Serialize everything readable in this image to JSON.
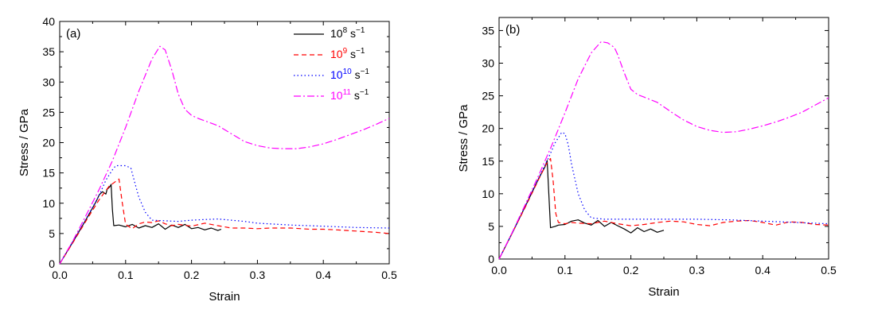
{
  "chart_data": [
    {
      "type": "line",
      "panel_label": "(a)",
      "xlabel": "Strain",
      "ylabel": "Stress / GPa",
      "xlim": [
        0,
        0.5
      ],
      "ylim": [
        0,
        40
      ],
      "xticks": [
        "0.0",
        "0.1",
        "0.2",
        "0.3",
        "0.4",
        "0.5"
      ],
      "yticks": [
        "0",
        "5",
        "10",
        "15",
        "20",
        "25",
        "30",
        "35",
        "40"
      ],
      "grid": false,
      "legend_placement": "top-right",
      "series": [
        {
          "name": "10^8 s^-1",
          "base": "10",
          "exp": "8",
          "unit": "s",
          "unit_exp": "−1",
          "color": "#000000",
          "dash": "solid",
          "points": [
            [
              0,
              0
            ],
            [
              0.02,
              3.6
            ],
            [
              0.04,
              7.3
            ],
            [
              0.055,
              10.2
            ],
            [
              0.06,
              11.4
            ],
            [
              0.065,
              11.9
            ],
            [
              0.07,
              11.5
            ],
            [
              0.072,
              12.3
            ],
            [
              0.076,
              12.7
            ],
            [
              0.078,
              13.1
            ],
            [
              0.08,
              9.0
            ],
            [
              0.082,
              6.3
            ],
            [
              0.09,
              6.4
            ],
            [
              0.1,
              6.1
            ],
            [
              0.11,
              6.5
            ],
            [
              0.12,
              5.9
            ],
            [
              0.13,
              6.3
            ],
            [
              0.14,
              6.0
            ],
            [
              0.15,
              6.6
            ],
            [
              0.16,
              5.7
            ],
            [
              0.17,
              6.4
            ],
            [
              0.18,
              6.0
            ],
            [
              0.19,
              6.5
            ],
            [
              0.2,
              5.8
            ],
            [
              0.21,
              6.0
            ],
            [
              0.22,
              5.6
            ],
            [
              0.23,
              5.9
            ],
            [
              0.24,
              5.5
            ],
            [
              0.245,
              5.7
            ]
          ]
        },
        {
          "name": "10^9 s^-1",
          "base": "10",
          "exp": "9",
          "unit": "s",
          "unit_exp": "−1",
          "color": "#ff0000",
          "dash": "dashed",
          "points": [
            [
              0,
              0
            ],
            [
              0.02,
              3.5
            ],
            [
              0.04,
              7.1
            ],
            [
              0.06,
              10.6
            ],
            [
              0.075,
              12.8
            ],
            [
              0.085,
              13.6
            ],
            [
              0.09,
              14.0
            ],
            [
              0.095,
              10.0
            ],
            [
              0.1,
              6.5
            ],
            [
              0.11,
              5.8
            ],
            [
              0.12,
              6.6
            ],
            [
              0.13,
              6.9
            ],
            [
              0.14,
              6.8
            ],
            [
              0.15,
              7.1
            ],
            [
              0.16,
              6.6
            ],
            [
              0.17,
              6.3
            ],
            [
              0.18,
              6.5
            ],
            [
              0.2,
              6.2
            ],
            [
              0.22,
              6.7
            ],
            [
              0.24,
              6.3
            ],
            [
              0.26,
              5.9
            ],
            [
              0.28,
              5.9
            ],
            [
              0.3,
              5.8
            ],
            [
              0.32,
              5.9
            ],
            [
              0.35,
              5.9
            ],
            [
              0.38,
              5.7
            ],
            [
              0.4,
              5.7
            ],
            [
              0.42,
              5.6
            ],
            [
              0.45,
              5.4
            ],
            [
              0.48,
              5.2
            ],
            [
              0.5,
              5.0
            ]
          ]
        },
        {
          "name": "10^10 s^-1",
          "base": "10",
          "exp": "10",
          "unit": "s",
          "unit_exp": "−1",
          "color": "#0000ff",
          "dash": "dotted",
          "points": [
            [
              0,
              0
            ],
            [
              0.02,
              3.7
            ],
            [
              0.04,
              7.4
            ],
            [
              0.06,
              11.3
            ],
            [
              0.07,
              13.8
            ],
            [
              0.08,
              15.5
            ],
            [
              0.085,
              16.2
            ],
            [
              0.1,
              16.2
            ],
            [
              0.108,
              15.8
            ],
            [
              0.115,
              13.0
            ],
            [
              0.12,
              11.0
            ],
            [
              0.13,
              8.5
            ],
            [
              0.14,
              7.2
            ],
            [
              0.16,
              7.1
            ],
            [
              0.18,
              7.0
            ],
            [
              0.2,
              7.2
            ],
            [
              0.22,
              7.3
            ],
            [
              0.24,
              7.4
            ],
            [
              0.26,
              7.2
            ],
            [
              0.28,
              7.0
            ],
            [
              0.3,
              6.7
            ],
            [
              0.35,
              6.4
            ],
            [
              0.4,
              6.2
            ],
            [
              0.45,
              6.0
            ],
            [
              0.5,
              5.9
            ]
          ]
        },
        {
          "name": "10^11 s^-1",
          "base": "10",
          "exp": "11",
          "unit": "s",
          "unit_exp": "−1",
          "color": "#ff00ff",
          "dash": "dashdot",
          "points": [
            [
              0,
              0
            ],
            [
              0.02,
              3.8
            ],
            [
              0.04,
              8.0
            ],
            [
              0.06,
              12.3
            ],
            [
              0.08,
              17.0
            ],
            [
              0.1,
              22.5
            ],
            [
              0.12,
              28.5
            ],
            [
              0.14,
              33.8
            ],
            [
              0.152,
              35.9
            ],
            [
              0.16,
              35.3
            ],
            [
              0.17,
              32.0
            ],
            [
              0.18,
              28.0
            ],
            [
              0.19,
              25.5
            ],
            [
              0.2,
              24.5
            ],
            [
              0.21,
              24.0
            ],
            [
              0.22,
              23.6
            ],
            [
              0.24,
              22.8
            ],
            [
              0.26,
              21.5
            ],
            [
              0.28,
              20.2
            ],
            [
              0.3,
              19.5
            ],
            [
              0.32,
              19.1
            ],
            [
              0.34,
              19.0
            ],
            [
              0.36,
              19.0
            ],
            [
              0.38,
              19.3
            ],
            [
              0.4,
              19.8
            ],
            [
              0.42,
              20.5
            ],
            [
              0.44,
              21.3
            ],
            [
              0.46,
              22.1
            ],
            [
              0.48,
              23.0
            ],
            [
              0.5,
              24.0
            ]
          ]
        }
      ]
    },
    {
      "type": "line",
      "panel_label": "(b)",
      "xlabel": "Strain",
      "ylabel": "Stress / GPa",
      "xlim": [
        0,
        0.5
      ],
      "ylim": [
        0,
        37
      ],
      "yticks_values": [
        0,
        5,
        10,
        15,
        20,
        25,
        30,
        35
      ],
      "xticks": [
        "0.0",
        "0.1",
        "0.2",
        "0.3",
        "0.4",
        "0.5"
      ],
      "yticks": [
        "0",
        "5",
        "10",
        "15",
        "20",
        "25",
        "30",
        "35"
      ],
      "grid": false,
      "legend_placement": "none",
      "series": [
        {
          "name": "10^8 s^-1",
          "color": "#000000",
          "dash": "solid",
          "points": [
            [
              0,
              0
            ],
            [
              0.02,
              4.0
            ],
            [
              0.04,
              8.1
            ],
            [
              0.06,
              12.3
            ],
            [
              0.07,
              14.2
            ],
            [
              0.073,
              15.1
            ],
            [
              0.076,
              9.0
            ],
            [
              0.078,
              4.8
            ],
            [
              0.085,
              5.0
            ],
            [
              0.09,
              5.2
            ],
            [
              0.1,
              5.3
            ],
            [
              0.11,
              5.8
            ],
            [
              0.12,
              6.0
            ],
            [
              0.13,
              5.5
            ],
            [
              0.14,
              5.2
            ],
            [
              0.15,
              5.9
            ],
            [
              0.16,
              5.0
            ],
            [
              0.17,
              5.6
            ],
            [
              0.18,
              5.1
            ],
            [
              0.19,
              4.6
            ],
            [
              0.2,
              4.0
            ],
            [
              0.21,
              4.8
            ],
            [
              0.22,
              4.2
            ],
            [
              0.23,
              4.6
            ],
            [
              0.24,
              4.1
            ],
            [
              0.25,
              4.4
            ]
          ]
        },
        {
          "name": "10^9 s^-1",
          "color": "#ff0000",
          "dash": "dashed",
          "points": [
            [
              0,
              0
            ],
            [
              0.02,
              4.0
            ],
            [
              0.04,
              8.0
            ],
            [
              0.06,
              12.2
            ],
            [
              0.072,
              14.6
            ],
            [
              0.078,
              15.4
            ],
            [
              0.082,
              12.0
            ],
            [
              0.086,
              7.0
            ],
            [
              0.09,
              5.6
            ],
            [
              0.1,
              5.4
            ],
            [
              0.11,
              5.6
            ],
            [
              0.12,
              5.5
            ],
            [
              0.14,
              5.4
            ],
            [
              0.16,
              5.8
            ],
            [
              0.18,
              5.4
            ],
            [
              0.2,
              5.1
            ],
            [
              0.22,
              5.3
            ],
            [
              0.24,
              5.6
            ],
            [
              0.26,
              5.8
            ],
            [
              0.28,
              5.7
            ],
            [
              0.3,
              5.3
            ],
            [
              0.32,
              5.1
            ],
            [
              0.34,
              5.6
            ],
            [
              0.36,
              5.8
            ],
            [
              0.38,
              5.9
            ],
            [
              0.4,
              5.6
            ],
            [
              0.42,
              5.2
            ],
            [
              0.44,
              5.7
            ],
            [
              0.46,
              5.6
            ],
            [
              0.48,
              5.3
            ],
            [
              0.5,
              5.2
            ]
          ]
        },
        {
          "name": "10^10 s^-1",
          "color": "#0000ff",
          "dash": "dotted",
          "points": [
            [
              0,
              0
            ],
            [
              0.02,
              4.0
            ],
            [
              0.04,
              8.2
            ],
            [
              0.06,
              12.4
            ],
            [
              0.075,
              15.5
            ],
            [
              0.085,
              17.8
            ],
            [
              0.095,
              19.4
            ],
            [
              0.1,
              19.2
            ],
            [
              0.105,
              17.5
            ],
            [
              0.11,
              14.5
            ],
            [
              0.12,
              10.0
            ],
            [
              0.13,
              7.5
            ],
            [
              0.14,
              6.3
            ],
            [
              0.16,
              6.1
            ],
            [
              0.2,
              6.1
            ],
            [
              0.25,
              6.1
            ],
            [
              0.3,
              6.1
            ],
            [
              0.35,
              6.0
            ],
            [
              0.4,
              5.8
            ],
            [
              0.45,
              5.6
            ],
            [
              0.5,
              5.4
            ]
          ]
        },
        {
          "name": "10^11 s^-1",
          "color": "#ff00ff",
          "dash": "dashdot",
          "points": [
            [
              0,
              0
            ],
            [
              0.02,
              4.1
            ],
            [
              0.04,
              8.4
            ],
            [
              0.06,
              12.8
            ],
            [
              0.08,
              17.4
            ],
            [
              0.1,
              22.4
            ],
            [
              0.12,
              27.6
            ],
            [
              0.14,
              31.6
            ],
            [
              0.155,
              33.3
            ],
            [
              0.165,
              33.1
            ],
            [
              0.175,
              32.4
            ],
            [
              0.18,
              31.3
            ],
            [
              0.19,
              28.5
            ],
            [
              0.2,
              26.0
            ],
            [
              0.21,
              25.2
            ],
            [
              0.22,
              24.8
            ],
            [
              0.23,
              24.4
            ],
            [
              0.24,
              24.0
            ],
            [
              0.26,
              22.6
            ],
            [
              0.28,
              21.3
            ],
            [
              0.3,
              20.3
            ],
            [
              0.32,
              19.7
            ],
            [
              0.34,
              19.4
            ],
            [
              0.36,
              19.5
            ],
            [
              0.38,
              19.9
            ],
            [
              0.4,
              20.4
            ],
            [
              0.42,
              21.0
            ],
            [
              0.44,
              21.7
            ],
            [
              0.46,
              22.5
            ],
            [
              0.48,
              23.6
            ],
            [
              0.5,
              24.7
            ]
          ]
        }
      ]
    }
  ]
}
